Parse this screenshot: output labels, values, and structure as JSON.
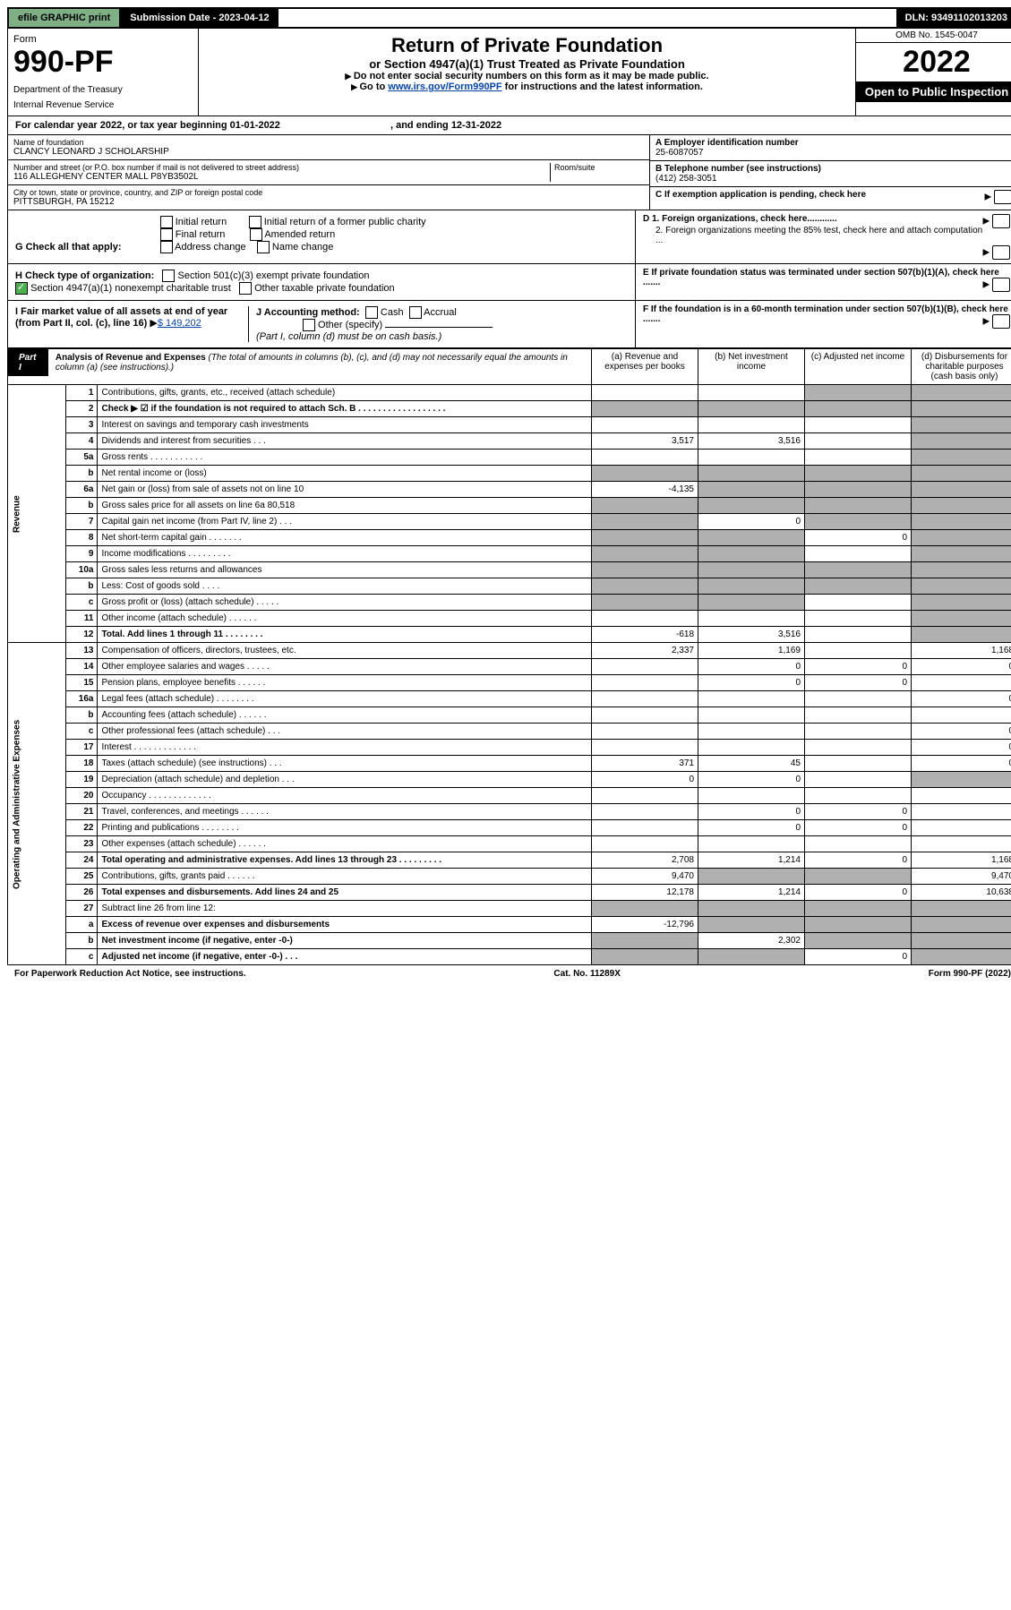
{
  "topbar": {
    "efile": "efile GRAPHIC print",
    "subdate_lbl": "Submission Date - 2023-04-12",
    "dln": "DLN: 93491102013203"
  },
  "header": {
    "form_word": "Form",
    "form_no": "990-PF",
    "dept": "Department of the Treasury",
    "irs": "Internal Revenue Service",
    "title": "Return of Private Foundation",
    "sub1": "or Section 4947(a)(1) Trust Treated as Private Foundation",
    "sub2a": "Do not enter social security numbers on this form as it may be made public.",
    "sub2b_pre": "Go to ",
    "sub2b_link": "www.irs.gov/Form990PF",
    "sub2b_post": " for instructions and the latest information.",
    "omb": "OMB No. 1545-0047",
    "year": "2022",
    "oti": "Open to Public Inspection"
  },
  "calbar": {
    "a": "For calendar year 2022, or tax year beginning 01-01-2022",
    "b": ", and ending 12-31-2022"
  },
  "info": {
    "name_lbl": "Name of foundation",
    "name": "CLANCY LEONARD J SCHOLARSHIP",
    "addr_lbl": "Number and street (or P.O. box number if mail is not delivered to street address)",
    "addr": "116 ALLEGHENY CENTER MALL P8YB3502L",
    "room_lbl": "Room/suite",
    "city_lbl": "City or town, state or province, country, and ZIP or foreign postal code",
    "city": "PITTSBURGH, PA  15212",
    "ein_lbl": "A Employer identification number",
    "ein": "25-6087057",
    "tel_lbl": "B Telephone number (see instructions)",
    "tel": "(412) 258-3051",
    "c_lbl": "C If exemption application is pending, check here",
    "d1": "D 1. Foreign organizations, check here............",
    "d2": "2. Foreign organizations meeting the 85% test, check here and attach computation ...",
    "e": "E  If private foundation status was terminated under section 507(b)(1)(A), check here .......",
    "f": "F  If the foundation is in a 60-month termination under section 507(b)(1)(B), check here .......",
    "g_lbl": "G Check all that apply:",
    "g_opts": [
      "Initial return",
      "Final return",
      "Address change",
      "Initial return of a former public charity",
      "Amended return",
      "Name change"
    ],
    "h_lbl": "H Check type of organization:",
    "h1": "Section 501(c)(3) exempt private foundation",
    "h2": "Section 4947(a)(1) nonexempt charitable trust",
    "h3": "Other taxable private foundation",
    "i_lbl": "I Fair market value of all assets at end of year (from Part II, col. (c), line 16)",
    "i_val": "$  149,202",
    "j_lbl": "J Accounting method:",
    "j_cash": "Cash",
    "j_accr": "Accrual",
    "j_other": "Other (specify)",
    "j_note": "(Part I, column (d) must be on cash basis.)"
  },
  "part1": {
    "lbl": "Part I",
    "title": "Analysis of Revenue and Expenses",
    "note": " (The total of amounts in columns (b), (c), and (d) may not necessarily equal the amounts in column (a) (see instructions).)",
    "col_a": "(a)   Revenue and expenses per books",
    "col_b": "(b)  Net investment income",
    "col_c": "(c)  Adjusted net income",
    "col_d": "(d)  Disbursements for charitable purposes (cash basis only)"
  },
  "sidelabels": {
    "rev": "Revenue",
    "exp": "Operating and Administrative Expenses"
  },
  "rows": [
    {
      "n": "1",
      "t": "Contributions, gifts, grants, etc., received (attach schedule)",
      "a": "",
      "b": "",
      "c": "s",
      "d": "s"
    },
    {
      "n": "2",
      "t": "Check ▶ ☑ if the foundation is not required to attach Sch. B  . . . . . . . . . . . . . . . . . .",
      "a": "s",
      "b": "s",
      "c": "s",
      "d": "s",
      "bold": true,
      "inlinecheck": true
    },
    {
      "n": "3",
      "t": "Interest on savings and temporary cash investments",
      "a": "",
      "b": "",
      "c": "",
      "d": "s"
    },
    {
      "n": "4",
      "t": "Dividends and interest from securities  . . .",
      "a": "3,517",
      "b": "3,516",
      "c": "",
      "d": "s"
    },
    {
      "n": "5a",
      "t": "Gross rents  . . . . . . . . . . .",
      "a": "",
      "b": "",
      "c": "",
      "d": "s"
    },
    {
      "n": "b",
      "t": "Net rental income or (loss)  ",
      "a": "s",
      "b": "s",
      "c": "s",
      "d": "s"
    },
    {
      "n": "6a",
      "t": "Net gain or (loss) from sale of assets not on line 10",
      "a": "-4,135",
      "b": "s",
      "c": "s",
      "d": "s"
    },
    {
      "n": "b",
      "t": "Gross sales price for all assets on line 6a               80,518",
      "a": "s",
      "b": "s",
      "c": "s",
      "d": "s"
    },
    {
      "n": "7",
      "t": "Capital gain net income (from Part IV, line 2)  . . .",
      "a": "s",
      "b": "0",
      "c": "s",
      "d": "s"
    },
    {
      "n": "8",
      "t": "Net short-term capital gain  . . . . . . .",
      "a": "s",
      "b": "s",
      "c": "0",
      "d": "s"
    },
    {
      "n": "9",
      "t": "Income modifications  . . . . . . . . .",
      "a": "s",
      "b": "s",
      "c": "",
      "d": "s"
    },
    {
      "n": "10a",
      "t": "Gross sales less returns and allowances",
      "a": "s",
      "b": "s",
      "c": "s",
      "d": "s"
    },
    {
      "n": "b",
      "t": "Less: Cost of goods sold  . . . .",
      "a": "s",
      "b": "s",
      "c": "s",
      "d": "s"
    },
    {
      "n": "c",
      "t": "Gross profit or (loss) (attach schedule)  . . . . .",
      "a": "s",
      "b": "s",
      "c": "",
      "d": "s"
    },
    {
      "n": "11",
      "t": "Other income (attach schedule)  . . . . . .",
      "a": "",
      "b": "",
      "c": "",
      "d": "s"
    },
    {
      "n": "12",
      "t": "Total. Add lines 1 through 11  . . . . . . . .",
      "a": "-618",
      "b": "3,516",
      "c": "",
      "d": "s",
      "bold": true
    },
    {
      "n": "13",
      "t": "Compensation of officers, directors, trustees, etc.",
      "a": "2,337",
      "b": "1,169",
      "c": "",
      "d": "1,168"
    },
    {
      "n": "14",
      "t": "Other employee salaries and wages  . . . . .",
      "a": "",
      "b": "0",
      "c": "0",
      "d": "0"
    },
    {
      "n": "15",
      "t": "Pension plans, employee benefits  . . . . . .",
      "a": "",
      "b": "0",
      "c": "0",
      "d": ""
    },
    {
      "n": "16a",
      "t": "Legal fees (attach schedule)  . . . . . . . .",
      "a": "",
      "b": "",
      "c": "",
      "d": "0"
    },
    {
      "n": "b",
      "t": "Accounting fees (attach schedule)  . . . . . .",
      "a": "",
      "b": "",
      "c": "",
      "d": ""
    },
    {
      "n": "c",
      "t": "Other professional fees (attach schedule)  . . .",
      "a": "",
      "b": "",
      "c": "",
      "d": "0"
    },
    {
      "n": "17",
      "t": "Interest  . . . . . . . . . . . . .",
      "a": "",
      "b": "",
      "c": "",
      "d": "0"
    },
    {
      "n": "18",
      "t": "Taxes (attach schedule) (see instructions)  . . .",
      "a": "371",
      "b": "45",
      "c": "",
      "d": "0"
    },
    {
      "n": "19",
      "t": "Depreciation (attach schedule) and depletion  . . .",
      "a": "0",
      "b": "0",
      "c": "",
      "d": "s"
    },
    {
      "n": "20",
      "t": "Occupancy  . . . . . . . . . . . . .",
      "a": "",
      "b": "",
      "c": "",
      "d": ""
    },
    {
      "n": "21",
      "t": "Travel, conferences, and meetings  . . . . . .",
      "a": "",
      "b": "0",
      "c": "0",
      "d": ""
    },
    {
      "n": "22",
      "t": "Printing and publications  . . . . . . . .",
      "a": "",
      "b": "0",
      "c": "0",
      "d": ""
    },
    {
      "n": "23",
      "t": "Other expenses (attach schedule)  . . . . . .",
      "a": "",
      "b": "",
      "c": "",
      "d": ""
    },
    {
      "n": "24",
      "t": "Total operating and administrative expenses. Add lines 13 through 23  . . . . . . . . .",
      "a": "2,708",
      "b": "1,214",
      "c": "0",
      "d": "1,168",
      "bold": true
    },
    {
      "n": "25",
      "t": "Contributions, gifts, grants paid  . . . . . .",
      "a": "9,470",
      "b": "s",
      "c": "s",
      "d": "9,470"
    },
    {
      "n": "26",
      "t": "Total expenses and disbursements. Add lines 24 and 25",
      "a": "12,178",
      "b": "1,214",
      "c": "0",
      "d": "10,638",
      "bold": true
    },
    {
      "n": "27",
      "t": "Subtract line 26 from line 12:",
      "a": "s",
      "b": "s",
      "c": "s",
      "d": "s"
    },
    {
      "n": "a",
      "t": "Excess of revenue over expenses and disbursements",
      "a": "-12,796",
      "b": "s",
      "c": "s",
      "d": "s",
      "bold": true
    },
    {
      "n": "b",
      "t": "Net investment income (if negative, enter -0-)",
      "a": "s",
      "b": "2,302",
      "c": "s",
      "d": "s",
      "bold": true
    },
    {
      "n": "c",
      "t": "Adjusted net income (if negative, enter -0-)  . . .",
      "a": "s",
      "b": "s",
      "c": "0",
      "d": "s",
      "bold": true
    }
  ],
  "footer": {
    "l": "For Paperwork Reduction Act Notice, see instructions.",
    "c": "Cat. No. 11289X",
    "r": "Form 990-PF (2022)"
  }
}
